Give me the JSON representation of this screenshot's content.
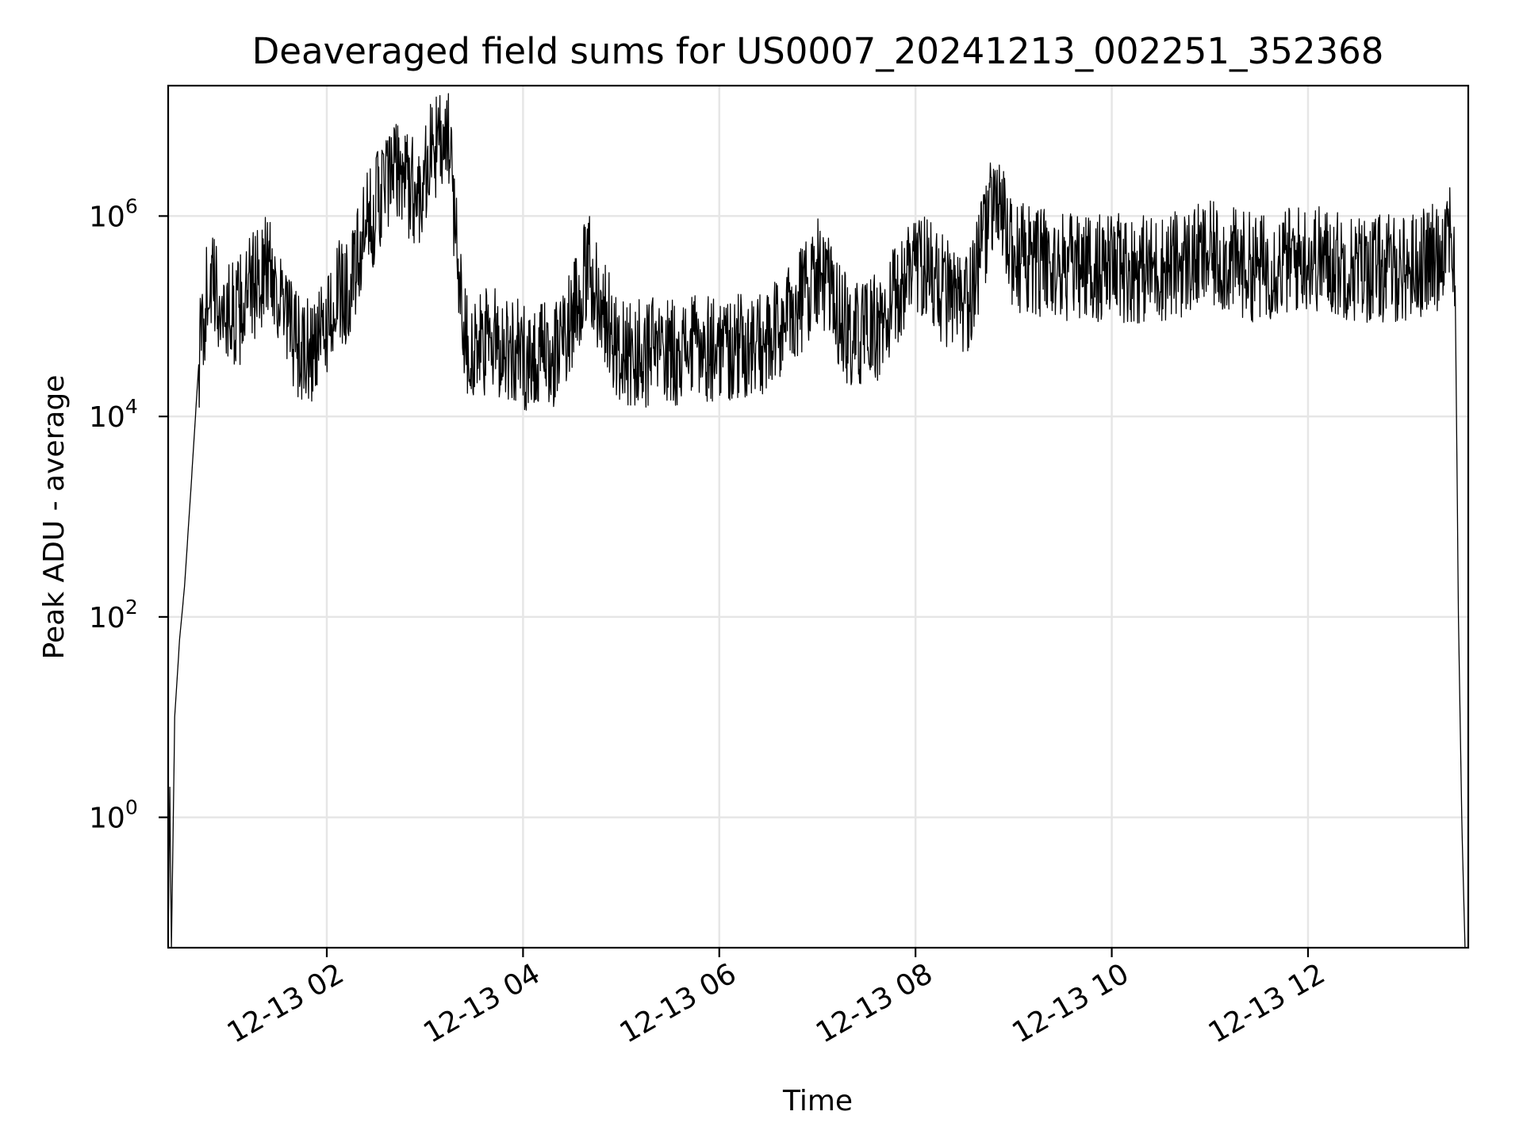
{
  "chart_data": {
    "type": "line",
    "title": "Deaveraged field sums for US0007_20241213_002251_352368",
    "xlabel": "Time",
    "ylabel": "Peak ADU - average",
    "x_scale": "time",
    "y_scale": "log",
    "xlim": [
      "2024-12-13 00:23",
      "2024-12-13 13:38"
    ],
    "ylim": [
      0.05,
      20000000
    ],
    "grid": true,
    "legend": "none",
    "line_color": "#000000",
    "x_ticks": [
      {
        "value": "2024-12-13 02:00",
        "label": "12-13 02"
      },
      {
        "value": "2024-12-13 04:00",
        "label": "12-13 04"
      },
      {
        "value": "2024-12-13 06:00",
        "label": "12-13 06"
      },
      {
        "value": "2024-12-13 08:00",
        "label": "12-13 08"
      },
      {
        "value": "2024-12-13 10:00",
        "label": "12-13 10"
      },
      {
        "value": "2024-12-13 12:00",
        "label": "12-13 12"
      }
    ],
    "y_ticks": [
      {
        "value": 1,
        "base": "10",
        "exp": "0"
      },
      {
        "value": 100,
        "base": "10",
        "exp": "2"
      },
      {
        "value": 10000,
        "base": "10",
        "exp": "4"
      },
      {
        "value": 1000000,
        "base": "10",
        "exp": "6"
      }
    ],
    "series": [
      {
        "x": [
          "2024-12-13 00:23",
          "2024-12-13 00:24",
          "2024-12-13 00:25",
          "2024-12-13 00:27",
          "2024-12-13 00:30",
          "2024-12-13 00:33",
          "2024-12-13 00:37",
          "2024-12-13 00:42",
          "2024-12-13 00:48",
          "2024-12-13 00:55",
          "2024-12-13 01:05",
          "2024-12-13 01:15",
          "2024-12-13 01:25",
          "2024-12-13 01:35",
          "2024-12-13 01:45",
          "2024-12-13 01:55",
          "2024-12-13 02:05",
          "2024-12-13 02:15",
          "2024-12-13 02:25",
          "2024-12-13 02:35",
          "2024-12-13 02:45",
          "2024-12-13 02:55",
          "2024-12-13 03:05",
          "2024-12-13 03:15",
          "2024-12-13 03:20",
          "2024-12-13 03:25",
          "2024-12-13 03:30",
          "2024-12-13 03:40",
          "2024-12-13 04:00",
          "2024-12-13 04:20",
          "2024-12-13 04:40",
          "2024-12-13 05:00",
          "2024-12-13 05:30",
          "2024-12-13 06:00",
          "2024-12-13 06:30",
          "2024-12-13 06:55",
          "2024-12-13 07:00",
          "2024-12-13 07:20",
          "2024-12-13 07:40",
          "2024-12-13 08:00",
          "2024-12-13 08:30",
          "2024-12-13 08:48",
          "2024-12-13 09:00",
          "2024-12-13 09:30",
          "2024-12-13 10:00",
          "2024-12-13 10:30",
          "2024-12-13 11:00",
          "2024-12-13 11:30",
          "2024-12-13 12:00",
          "2024-12-13 12:30",
          "2024-12-13 13:00",
          "2024-12-13 13:20",
          "2024-12-13 13:27",
          "2024-12-13 13:30",
          "2024-12-13 13:32",
          "2024-12-13 13:34",
          "2024-12-13 13:36"
        ],
        "y": [
          0.05,
          2,
          0.05,
          10,
          60,
          200,
          2000,
          40000,
          250000,
          120000,
          100000,
          200000,
          350000,
          90000,
          40000,
          50000,
          150000,
          200000,
          800000,
          2000000,
          3000000,
          1500000,
          5000000,
          5000000,
          400000,
          60000,
          40000,
          60000,
          40000,
          40000,
          300000,
          40000,
          45000,
          50000,
          50000,
          200000,
          300000,
          60000,
          80000,
          400000,
          100000,
          1500000,
          400000,
          300000,
          300000,
          300000,
          400000,
          300000,
          400000,
          300000,
          300000,
          400000,
          1000000,
          200000,
          100,
          1,
          0.05
        ]
      }
    ]
  }
}
